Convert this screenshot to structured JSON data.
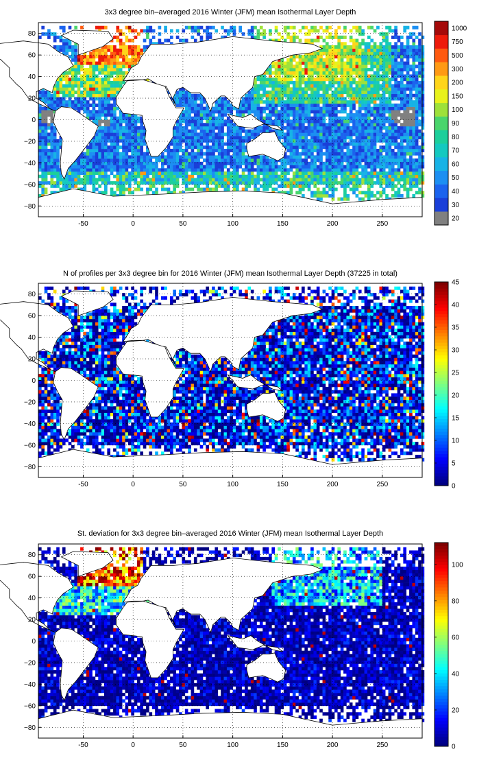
{
  "chart_data": [
    {
      "type": "heatmap",
      "title": "3x3 degree bin–averaged 2016 Winter (JFM) mean Isothermal Layer Depth",
      "x_ticks": [
        "-50",
        "0",
        "50",
        "100",
        "150",
        "200",
        "250"
      ],
      "y_ticks": [
        "80",
        "60",
        "40",
        "20",
        "0",
        "−20",
        "−40",
        "−60",
        "−80"
      ],
      "xlim": [
        -95,
        290
      ],
      "ylim": [
        -90,
        90
      ],
      "grid": true,
      "colorbar": {
        "kind": "discrete",
        "labels": [
          "20",
          "30",
          "40",
          "50",
          "60",
          "70",
          "80",
          "90",
          "100",
          "150",
          "200",
          "300",
          "500",
          "750",
          "1000"
        ],
        "colors": [
          "#808080",
          "#1a3fd9",
          "#1b63ee",
          "#1c8ff2",
          "#17b3e6",
          "#14c9c0",
          "#1ccf9b",
          "#4ad56c",
          "#9ee13a",
          "#e8f21c",
          "#ffd51a",
          "#ff9a14",
          "#ff5a0f",
          "#ee1b0b",
          "#a50a0a"
        ]
      }
    },
    {
      "type": "heatmap",
      "title": "N of profiles per 3x3 degree bin for 2016 Winter (JFM) mean Isothermal Layer Depth  (37225 in total)",
      "x_ticks": [
        "-50",
        "0",
        "50",
        "100",
        "150",
        "200",
        "250"
      ],
      "y_ticks": [
        "80",
        "60",
        "40",
        "20",
        "0",
        "−20",
        "−40",
        "−60",
        "−80"
      ],
      "xlim": [
        -95,
        290
      ],
      "ylim": [
        -90,
        90
      ],
      "grid": true,
      "total_profiles": 37225,
      "colorbar": {
        "kind": "continuous",
        "range": [
          0,
          45
        ],
        "ticks": [
          "0",
          "5",
          "10",
          "15",
          "20",
          "25",
          "30",
          "35",
          "40",
          "45"
        ]
      }
    },
    {
      "type": "heatmap",
      "title": "St. deviation for 3x3 degree bin–averaged 2016 Winter (JFM) mean Isothermal Layer Depth",
      "x_ticks": [
        "-50",
        "0",
        "50",
        "100",
        "150",
        "200",
        "250"
      ],
      "y_ticks": [
        "80",
        "60",
        "40",
        "20",
        "0",
        "−20",
        "−40",
        "−60",
        "−80"
      ],
      "xlim": [
        -95,
        290
      ],
      "ylim": [
        -90,
        90
      ],
      "grid": true,
      "colorbar": {
        "kind": "continuous",
        "range": [
          0,
          112
        ],
        "ticks": [
          "0",
          "20",
          "40",
          "60",
          "80",
          "100"
        ]
      }
    }
  ]
}
